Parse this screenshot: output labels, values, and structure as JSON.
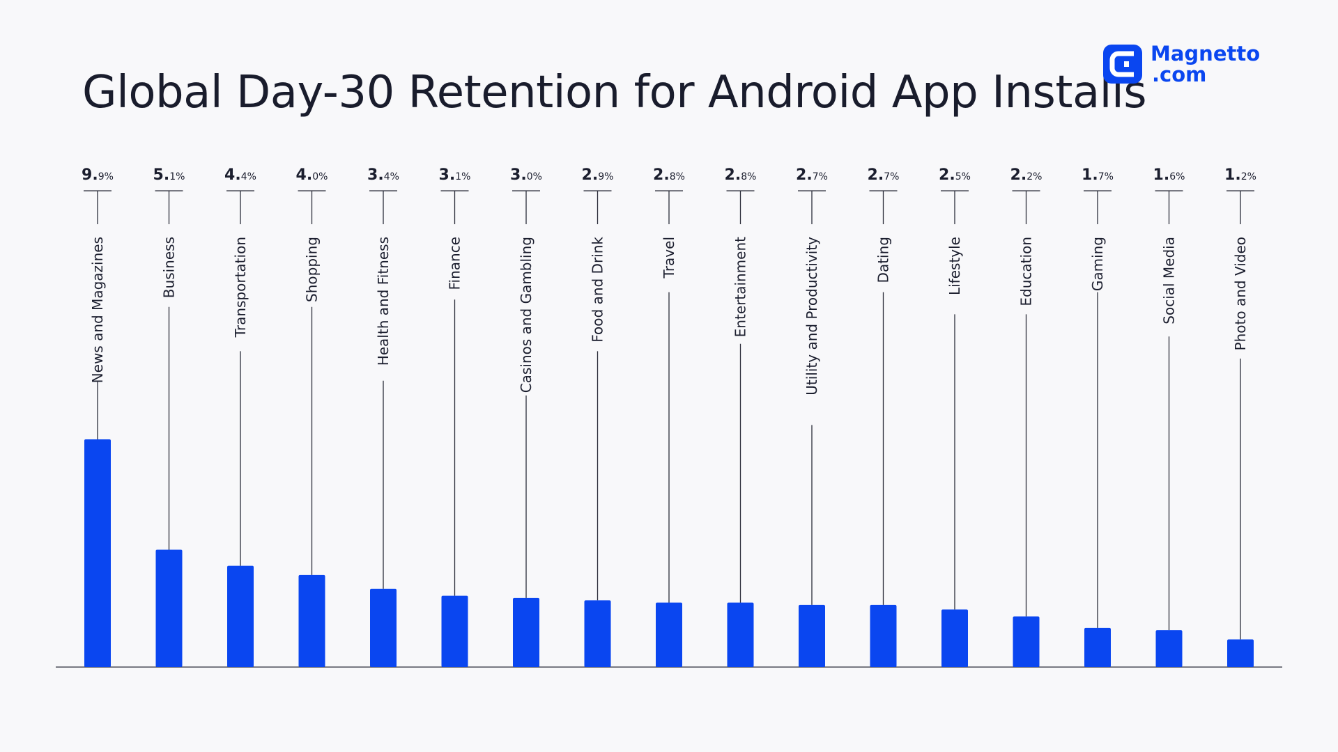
{
  "header": {
    "title": "Global Day-30 Retention for Android App Installs"
  },
  "logo": {
    "line1": "Magnetto",
    "line2": ".com",
    "icon": "magnet-c-icon",
    "color": "#0a46f0"
  },
  "chart_data": {
    "type": "bar",
    "title": "Global Day-30 Retention for Android App Installs",
    "xlabel": "",
    "ylabel": "",
    "ylim": [
      0,
      9.9
    ],
    "grid": false,
    "bar_color": "#0a46f0",
    "categories": [
      "News and Magazines",
      "Business",
      "Transportation",
      "Shopping",
      "Health and Fitness",
      "Finance",
      "Casinos and Gambling",
      "Food and Drink",
      "Travel",
      "Entertainment",
      "Utility and Productivity",
      "Dating",
      "Lifestyle",
      "Education",
      "Gaming",
      "Social Media",
      "Photo and Video"
    ],
    "values": [
      9.9,
      5.1,
      4.4,
      4.0,
      3.4,
      3.1,
      3.0,
      2.9,
      2.8,
      2.8,
      2.7,
      2.7,
      2.5,
      2.2,
      1.7,
      1.6,
      1.2
    ],
    "value_labels": [
      {
        "major": "9.",
        "minor": "9%"
      },
      {
        "major": "5.",
        "minor": "1%"
      },
      {
        "major": "4.",
        "minor": "4%"
      },
      {
        "major": "4.",
        "minor": "0%"
      },
      {
        "major": "3.",
        "minor": "4%"
      },
      {
        "major": "3.",
        "minor": "1%"
      },
      {
        "major": "3.",
        "minor": "0%"
      },
      {
        "major": "2.",
        "minor": "9%"
      },
      {
        "major": "2.",
        "minor": "8%"
      },
      {
        "major": "2.",
        "minor": "8%"
      },
      {
        "major": "2.",
        "minor": "7%"
      },
      {
        "major": "2.",
        "minor": "7%"
      },
      {
        "major": "2.",
        "minor": "5%"
      },
      {
        "major": "2.",
        "minor": "2%"
      },
      {
        "major": "1.",
        "minor": "7%"
      },
      {
        "major": "1.",
        "minor": "6%"
      },
      {
        "major": "1.",
        "minor": "2%"
      }
    ]
  }
}
